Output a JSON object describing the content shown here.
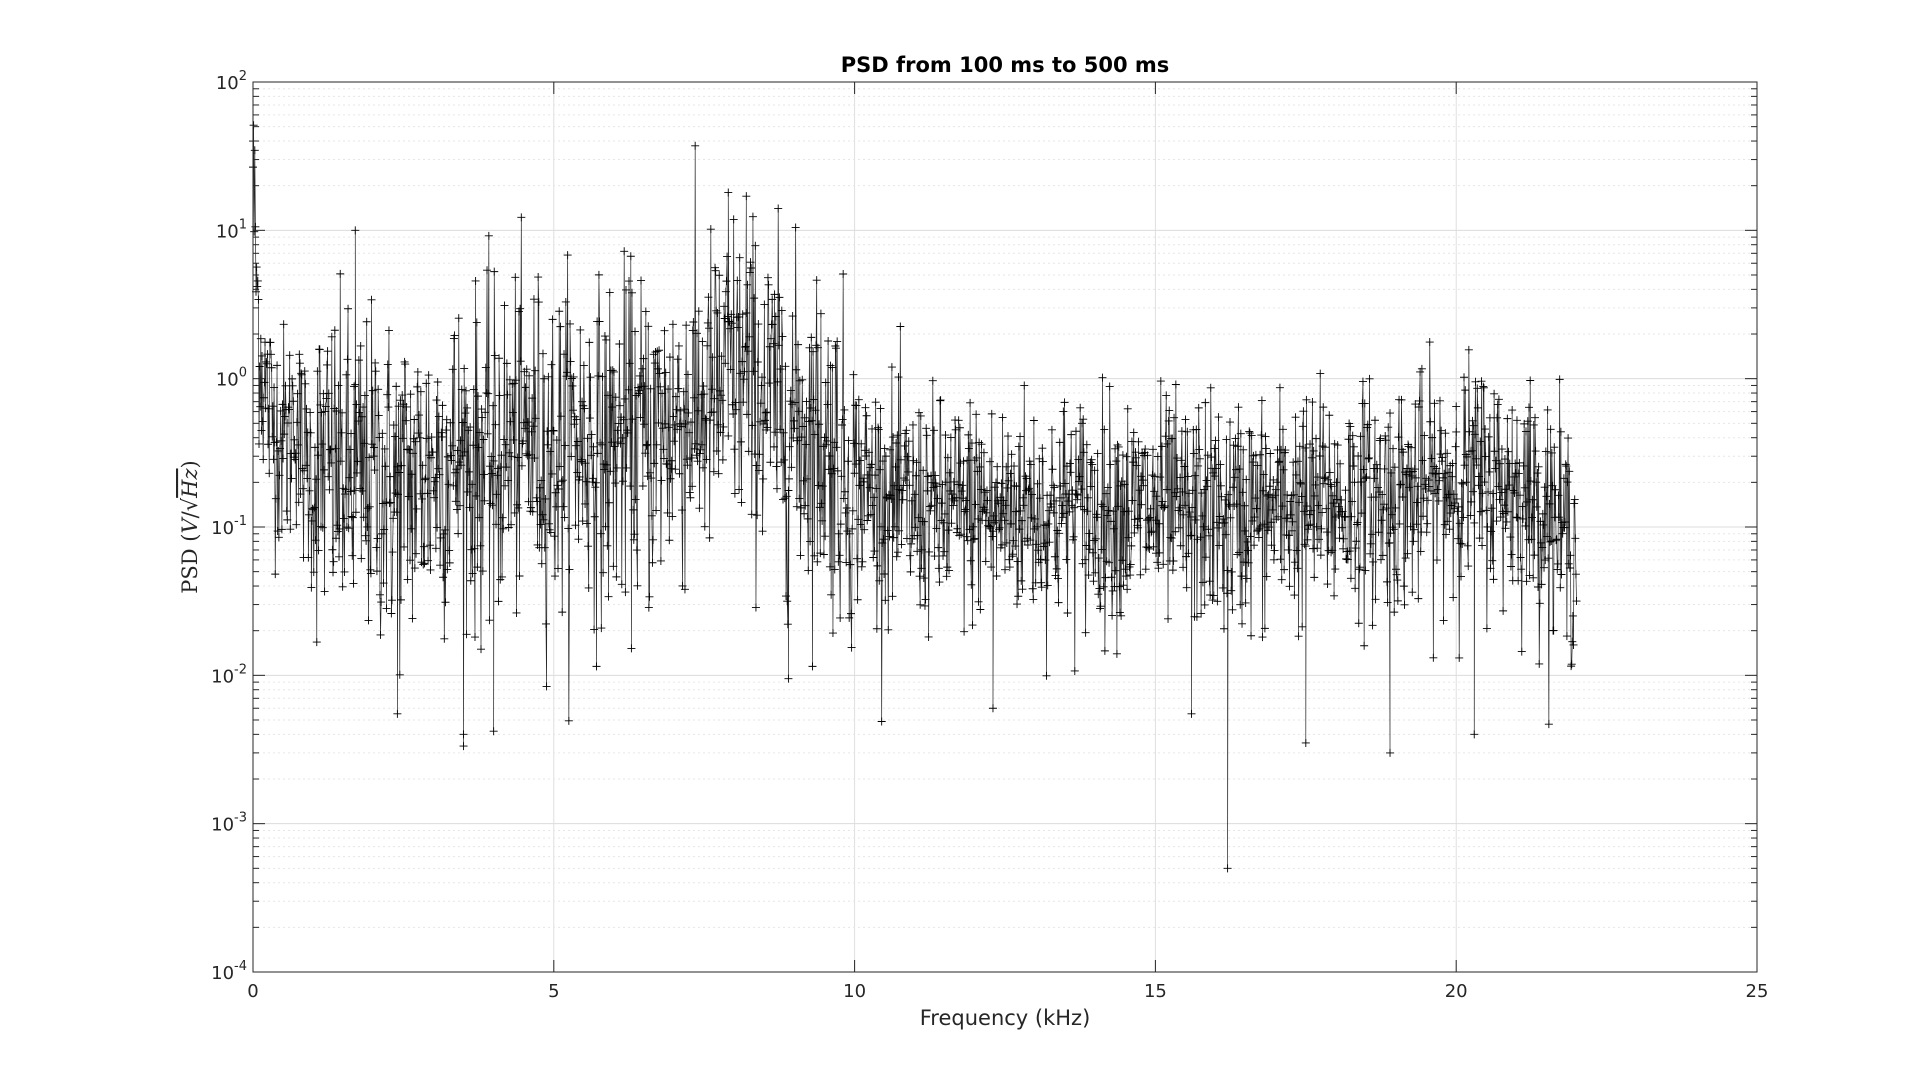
{
  "chart_data": {
    "type": "line",
    "title": "PSD from 100 ms to 500 ms",
    "xlabel": "Frequency (kHz)",
    "ylabel": "PSD (V/√Hz)",
    "ylabel_parts": {
      "prefix": "PSD (",
      "num": "V",
      "slash": "/",
      "root": "√",
      "den": "Hz",
      "suffix": ")"
    },
    "xlim": [
      0,
      25
    ],
    "ylim": [
      0.0001,
      100
    ],
    "yscale": "log",
    "grid": true,
    "minor_grid": true,
    "marker": "+",
    "line_color": "#000000",
    "xticks": [
      0,
      5,
      10,
      15,
      20,
      25
    ],
    "xtick_labels": [
      "0",
      "5",
      "10",
      "15",
      "20",
      "25"
    ],
    "yticks": [
      0.0001,
      0.001,
      0.01,
      0.1,
      1,
      10,
      100
    ],
    "ytick_labels": [
      {
        "base": "10",
        "exp": "-4"
      },
      {
        "base": "10",
        "exp": "-3"
      },
      {
        "base": "10",
        "exp": "-2"
      },
      {
        "base": "10",
        "exp": "-1"
      },
      {
        "base": "10",
        "exp": "0"
      },
      {
        "base": "10",
        "exp": "1"
      },
      {
        "base": "10",
        "exp": "2"
      }
    ],
    "series": [
      {
        "x": [
          0,
          0.02,
          0.05,
          0.1,
          0.15,
          0.2,
          0.3,
          0.4,
          0.5,
          0.6,
          0.7,
          0.8,
          0.9,
          1.0,
          1.2,
          1.4,
          1.6,
          1.8,
          2.0,
          2.2,
          2.4,
          2.6,
          2.8,
          3.0,
          3.2,
          3.4,
          3.6,
          3.8,
          4.0,
          4.2,
          4.4,
          4.6,
          4.8,
          5.0,
          5.2,
          5.4,
          5.6,
          5.8,
          6.0,
          6.2,
          6.4,
          6.6,
          6.8,
          7.0,
          7.2,
          7.4,
          7.6,
          7.8,
          8.0,
          8.2,
          8.4,
          8.6,
          8.8,
          9.0,
          9.2,
          9.4,
          9.6,
          9.8,
          10.0,
          10.2,
          10.4,
          10.6,
          10.8,
          11.0,
          11.2,
          11.4,
          11.6,
          11.8,
          12.0,
          12.2,
          12.4,
          12.6,
          12.8,
          13.0,
          13.2,
          13.4,
          13.6,
          13.8,
          14.0,
          14.2,
          14.4,
          14.6,
          14.8,
          15.0,
          15.2,
          15.4,
          15.6,
          15.8,
          16.0,
          16.2,
          16.4,
          16.6,
          16.8,
          17.0,
          17.2,
          17.4,
          17.6,
          17.8,
          18.0,
          18.2,
          18.4,
          18.6,
          18.8,
          19.0,
          19.2,
          19.4,
          19.6,
          19.8,
          20.0,
          20.2,
          20.4,
          20.6,
          20.8,
          21.0,
          21.2,
          21.4,
          21.6,
          21.8,
          22.0
        ],
        "y": [
          35,
          14,
          5.5,
          2.2,
          1.1,
          0.8,
          0.55,
          0.45,
          0.4,
          0.35,
          0.7,
          0.3,
          0.25,
          0.22,
          0.25,
          0.22,
          0.2,
          0.2,
          0.22,
          0.2,
          0.18,
          0.2,
          0.22,
          0.25,
          0.28,
          0.3,
          0.25,
          0.28,
          0.3,
          0.32,
          0.35,
          0.4,
          0.35,
          0.3,
          0.35,
          0.4,
          0.35,
          0.3,
          0.35,
          0.38,
          0.4,
          0.35,
          0.45,
          0.5,
          0.55,
          0.6,
          0.7,
          0.8,
          1.1,
          0.9,
          0.8,
          0.7,
          0.6,
          0.5,
          0.45,
          0.4,
          0.35,
          0.25,
          0.2,
          0.18,
          0.17,
          0.15,
          0.14,
          0.13,
          0.13,
          0.12,
          0.13,
          0.12,
          0.14,
          0.13,
          0.12,
          0.13,
          0.14,
          0.13,
          0.12,
          0.13,
          0.14,
          0.13,
          0.12,
          0.13,
          0.14,
          0.12,
          0.13,
          0.12,
          0.13,
          0.11,
          0.12,
          0.13,
          0.12,
          0.11,
          0.12,
          0.13,
          0.12,
          0.13,
          0.14,
          0.13,
          0.14,
          0.15,
          0.14,
          0.15,
          0.16,
          0.15,
          0.16,
          0.17,
          0.16,
          0.17,
          0.18,
          0.19,
          0.2,
          0.22,
          0.21,
          0.2,
          0.19,
          0.18,
          0.16,
          0.14,
          0.12,
          0.09,
          0.07
        ],
        "notable_points": [
          {
            "x": 0.0,
            "y": 40
          },
          {
            "x": 1.7,
            "y": 10
          },
          {
            "x": 2.4,
            "y": 0.0055
          },
          {
            "x": 3.5,
            "y": 0.004
          },
          {
            "x": 4.0,
            "y": 0.0042
          },
          {
            "x": 7.9,
            "y": 18
          },
          {
            "x": 8.2,
            "y": 17
          },
          {
            "x": 8.9,
            "y": 0.0095
          },
          {
            "x": 12.3,
            "y": 0.006
          },
          {
            "x": 15.6,
            "y": 0.0055
          },
          {
            "x": 16.2,
            "y": 0.0005
          },
          {
            "x": 17.5,
            "y": 0.0035
          },
          {
            "x": 18.9,
            "y": 0.003
          },
          {
            "x": 20.3,
            "y": 0.004
          },
          {
            "x": 20.0,
            "y": 0.65
          }
        ]
      }
    ]
  }
}
